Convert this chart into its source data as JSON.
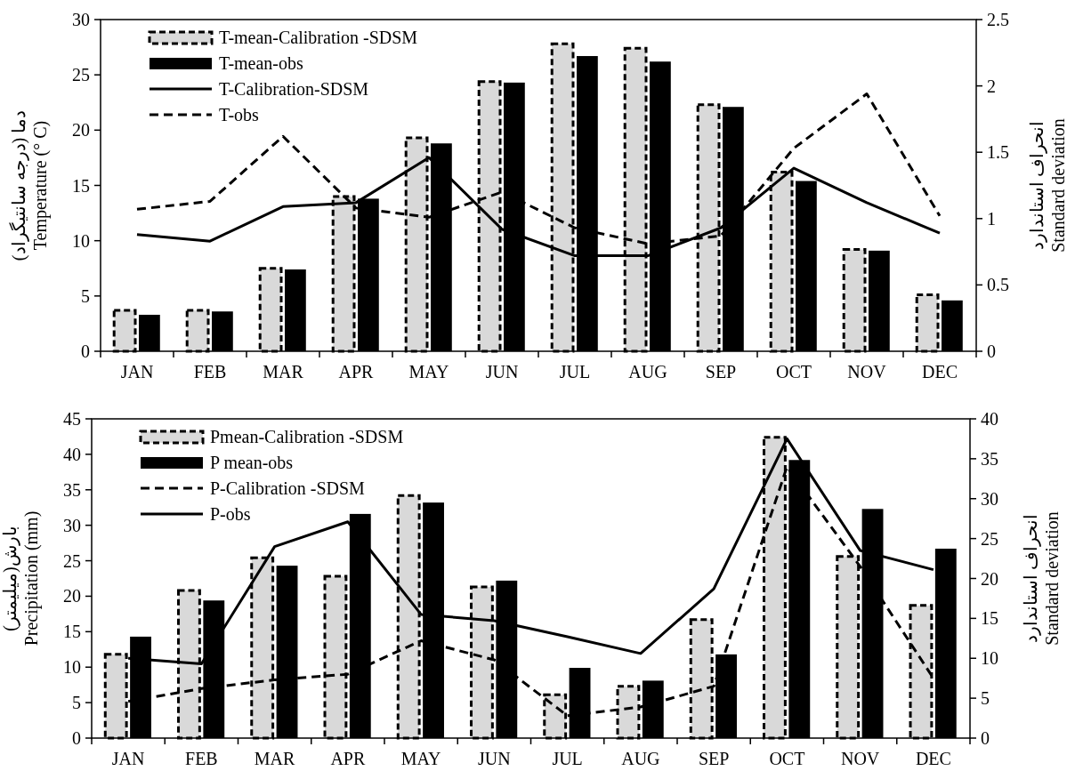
{
  "chart_data": [
    {
      "type": "bar",
      "categories": [
        "JAN",
        "FEB",
        "MAR",
        "APR",
        "MAY",
        "JUN",
        "JUL",
        "AUG",
        "SEP",
        "OCT",
        "NOV",
        "DEC"
      ],
      "ylabel": "دما (درجه سانتیگراد)\nTemperature (° C)",
      "y2label": "انحراف استاندارد\nStandard deviation",
      "ylim": [
        0,
        30
      ],
      "yticks": [
        0,
        5,
        10,
        15,
        20,
        25,
        30
      ],
      "y2lim": [
        0,
        2.5
      ],
      "y2ticks": [
        0,
        0.5,
        1,
        1.5,
        2,
        2.5
      ],
      "legend": "top left",
      "series": [
        {
          "name": "T-mean-Calibration -SDSM",
          "color": "#d9d9d9",
          "line_style": "dashed",
          "values": [
            3.7,
            3.7,
            7.5,
            14,
            19.3,
            24.4,
            27.8,
            27.4,
            22.3,
            16.2,
            9.2,
            5.1
          ]
        },
        {
          "name": "T-mean-obs",
          "color": "#000000",
          "values": [
            3.3,
            3.6,
            7.4,
            13.8,
            18.8,
            24.3,
            26.7,
            26.2,
            22.1,
            15.4,
            9.1,
            4.6
          ]
        },
        {
          "name": "T-Calibration-SDSM",
          "type": "line",
          "axis": "y2",
          "color": "#000000",
          "line_style": "solid",
          "values": [
            0.88,
            0.83,
            1.09,
            1.12,
            1.46,
            0.92,
            0.72,
            0.72,
            0.93,
            1.38,
            1.12,
            0.89
          ]
        },
        {
          "name": "T-obs",
          "type": "line",
          "axis": "y2",
          "color": "#000000",
          "line_style": "dashed",
          "values": [
            1.07,
            1.13,
            1.62,
            1.08,
            1.01,
            1.2,
            0.93,
            0.81,
            0.87,
            1.53,
            1.94,
            1.02
          ]
        }
      ]
    },
    {
      "type": "bar",
      "categories": [
        "JAN",
        "FEB",
        "MAR",
        "APR",
        "MAY",
        "JUN",
        "JUL",
        "AUG",
        "SEP",
        "OCT",
        "NOV",
        "DEC"
      ],
      "ylabel": "بارش(میلیمتر)\nPrecipitation (mm)",
      "y2label": "انحراف استاندارد\nStandard deviation",
      "ylim": [
        0,
        45
      ],
      "yticks": [
        0,
        5,
        10,
        15,
        20,
        25,
        30,
        35,
        40,
        45
      ],
      "y2lim": [
        0,
        40
      ],
      "y2ticks": [
        0,
        5,
        10,
        15,
        20,
        25,
        30,
        35,
        40
      ],
      "legend": "top left",
      "series": [
        {
          "name": "Pmean-Calibration -SDSM",
          "color": "#d9d9d9",
          "line_style": "dashed",
          "values": [
            11.8,
            20.8,
            25.4,
            22.8,
            34.2,
            21.3,
            6.1,
            7.3,
            16.7,
            42.4,
            25.6,
            18.7
          ]
        },
        {
          "name": "P mean-obs",
          "color": "#000000",
          "values": [
            14.3,
            19.4,
            24.3,
            31.6,
            33.2,
            22.2,
            9.9,
            8.1,
            11.8,
            39.2,
            32.3,
            26.7
          ]
        },
        {
          "name": "P-Calibration -SDSM",
          "type": "line",
          "axis": "y2",
          "color": "#000000",
          "line_style": "dashed",
          "values": [
            4.6,
            6.2,
            7.3,
            8,
            12.2,
            9.8,
            2.8,
            3.9,
            6.5,
            34,
            21.5,
            7.5
          ]
        },
        {
          "name": "P-obs",
          "type": "line",
          "axis": "y2",
          "color": "#000000",
          "line_style": "solid",
          "values": [
            10,
            9.3,
            24,
            27.1,
            15.5,
            14.7,
            12.7,
            10.6,
            18.7,
            37.5,
            23.5,
            21.1
          ]
        }
      ]
    }
  ]
}
